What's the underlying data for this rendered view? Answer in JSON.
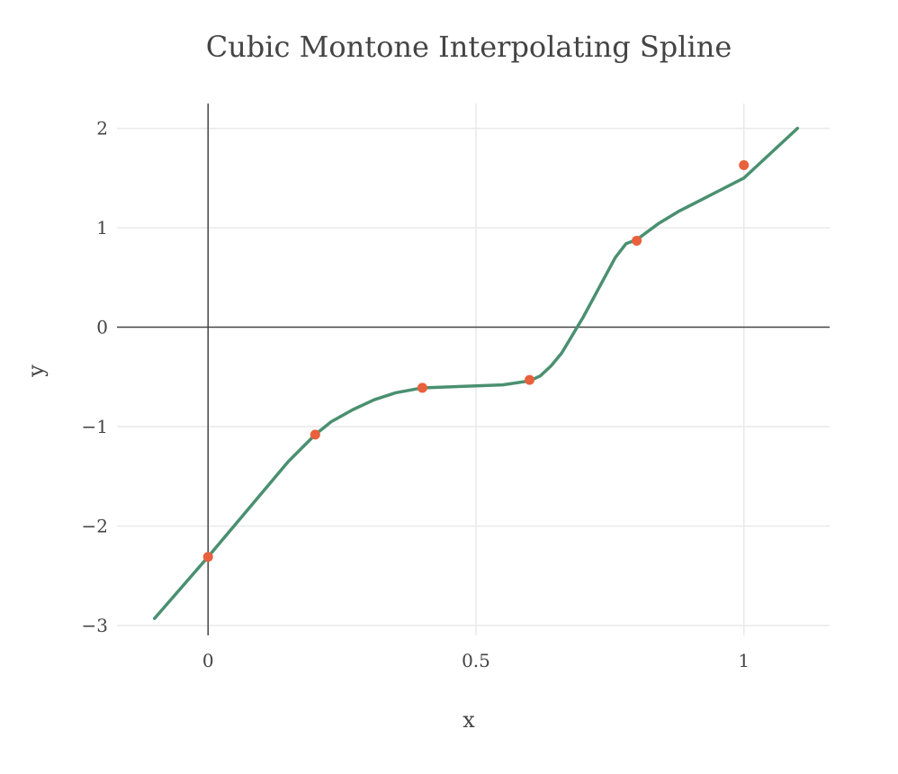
{
  "chart_data": {
    "type": "line",
    "title": "Cubic Montone Interpolating Spline",
    "xlabel": "x",
    "ylabel": "y",
    "xlim": [
      -0.17,
      1.16
    ],
    "ylim": [
      -3.1,
      2.25
    ],
    "x_ticks": [
      {
        "value": 0,
        "label": "0"
      },
      {
        "value": 0.5,
        "label": "0.5"
      },
      {
        "value": 1,
        "label": "1"
      }
    ],
    "y_ticks": [
      {
        "value": 2,
        "label": "2"
      },
      {
        "value": 1,
        "label": "1"
      },
      {
        "value": 0,
        "label": "0"
      },
      {
        "value": -1,
        "label": "−1"
      },
      {
        "value": -2,
        "label": "−2"
      },
      {
        "value": -3,
        "label": "−3"
      }
    ],
    "grid": true,
    "series": [
      {
        "kind": "line",
        "color": "#4a9070",
        "x": [
          -0.1,
          -0.05,
          0,
          0.05,
          0.1,
          0.15,
          0.2,
          0.23,
          0.27,
          0.31,
          0.35,
          0.4,
          0.45,
          0.5,
          0.55,
          0.6,
          0.62,
          0.64,
          0.66,
          0.68,
          0.7,
          0.72,
          0.74,
          0.76,
          0.78,
          0.8,
          0.84,
          0.88,
          0.92,
          0.96,
          1.0,
          1.05,
          1.1
        ],
        "y": [
          -2.93,
          -2.62,
          -2.31,
          -1.99,
          -1.67,
          -1.35,
          -1.08,
          -0.95,
          -0.83,
          -0.73,
          -0.66,
          -0.61,
          -0.6,
          -0.59,
          -0.58,
          -0.54,
          -0.49,
          -0.39,
          -0.26,
          -0.08,
          0.1,
          0.3,
          0.5,
          0.7,
          0.84,
          0.88,
          1.04,
          1.17,
          1.28,
          1.39,
          1.5,
          1.75,
          2.0
        ]
      },
      {
        "kind": "markers",
        "color": "#e8603c",
        "x": [
          0,
          0.2,
          0.4,
          0.6,
          0.8,
          1.0
        ],
        "y": [
          -2.31,
          -1.08,
          -0.61,
          -0.53,
          0.87,
          1.63
        ]
      }
    ]
  }
}
